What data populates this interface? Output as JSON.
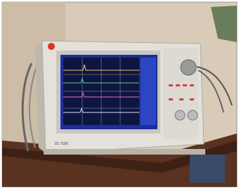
{
  "device": {
    "model_label": "DL 7100"
  }
}
